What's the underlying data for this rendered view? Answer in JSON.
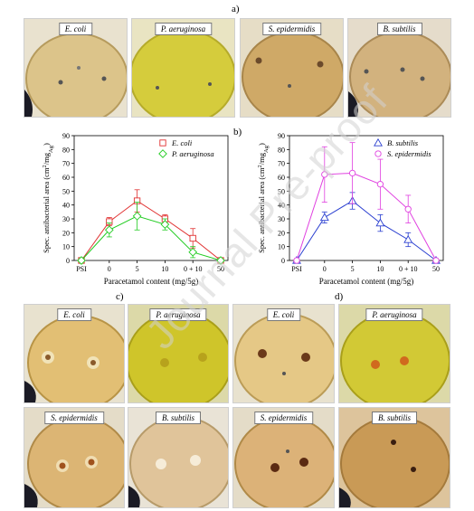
{
  "panels": {
    "a": "a)",
    "b": "b)",
    "c": "c)",
    "d": "d)"
  },
  "photos_a": [
    "E. coli",
    "P. aeruginosa",
    "S. epidermidis",
    "B. subtilis"
  ],
  "photos_c": [
    "E. coli",
    "P. aeruginosa",
    "S. epidermidis",
    "B. subtilis"
  ],
  "photos_d": [
    "E. coli",
    "P. aeruginosa",
    "S. epidermidis",
    "B. subtilis"
  ],
  "watermark": "Journal Pre-proof",
  "colors": {
    "e_coli": "#e03030",
    "p_aeruginosa": "#22cc22",
    "b_subtilis": "#2a3fd0",
    "s_epidermidis": "#e040e0",
    "plate_yellow": "#d8cf45",
    "plate_amber": "#d9b77a"
  },
  "chart_data": [
    {
      "type": "line",
      "categories": [
        "PSI",
        "0",
        "5",
        "10",
        "0 + 10",
        "50"
      ],
      "series": [
        {
          "name": "E. coli",
          "values": [
            0,
            28,
            43,
            30,
            16,
            0
          ],
          "errors": [
            0,
            3,
            8,
            3,
            7,
            0
          ]
        },
        {
          "name": "P. aeruginosa",
          "values": [
            0,
            22,
            32,
            26,
            6,
            0
          ],
          "errors": [
            0,
            5,
            10,
            4,
            4,
            0
          ]
        }
      ],
      "xlabel": "Paracetamol content (mg/5g)",
      "ylabel_main": "Spec. antibacterial area (cm",
      "ylabel_sup": "2",
      "ylabel_mid": "/mg",
      "ylabel_sub": "Ag",
      "ylabel_end": ")",
      "ylim": [
        0,
        90
      ],
      "yticks": [
        "0",
        "10",
        "20",
        "30",
        "40",
        "50",
        "60",
        "70",
        "80",
        "90"
      ],
      "legend": "top-right"
    },
    {
      "type": "line",
      "categories": [
        "PSI",
        "0",
        "5",
        "10",
        "0 + 10",
        "50"
      ],
      "series": [
        {
          "name": "B. subtilis",
          "values": [
            0,
            31,
            43,
            27,
            15,
            0
          ],
          "errors": [
            0,
            4,
            6,
            6,
            5,
            0
          ]
        },
        {
          "name": "S. epidermidis",
          "values": [
            0,
            62,
            63,
            55,
            37,
            0
          ],
          "errors": [
            0,
            20,
            22,
            18,
            10,
            0
          ]
        }
      ],
      "xlabel": "Paracetamol content (mg/5g)",
      "ylabel_main": "Spec. antibacterial area (cm",
      "ylabel_sup": "2",
      "ylabel_mid": "/mg",
      "ylabel_sub": "Ag",
      "ylabel_end": ")",
      "ylim": [
        0,
        90
      ],
      "yticks": [
        "0",
        "10",
        "20",
        "30",
        "40",
        "50",
        "60",
        "70",
        "80",
        "90"
      ],
      "legend": "top-right"
    }
  ]
}
